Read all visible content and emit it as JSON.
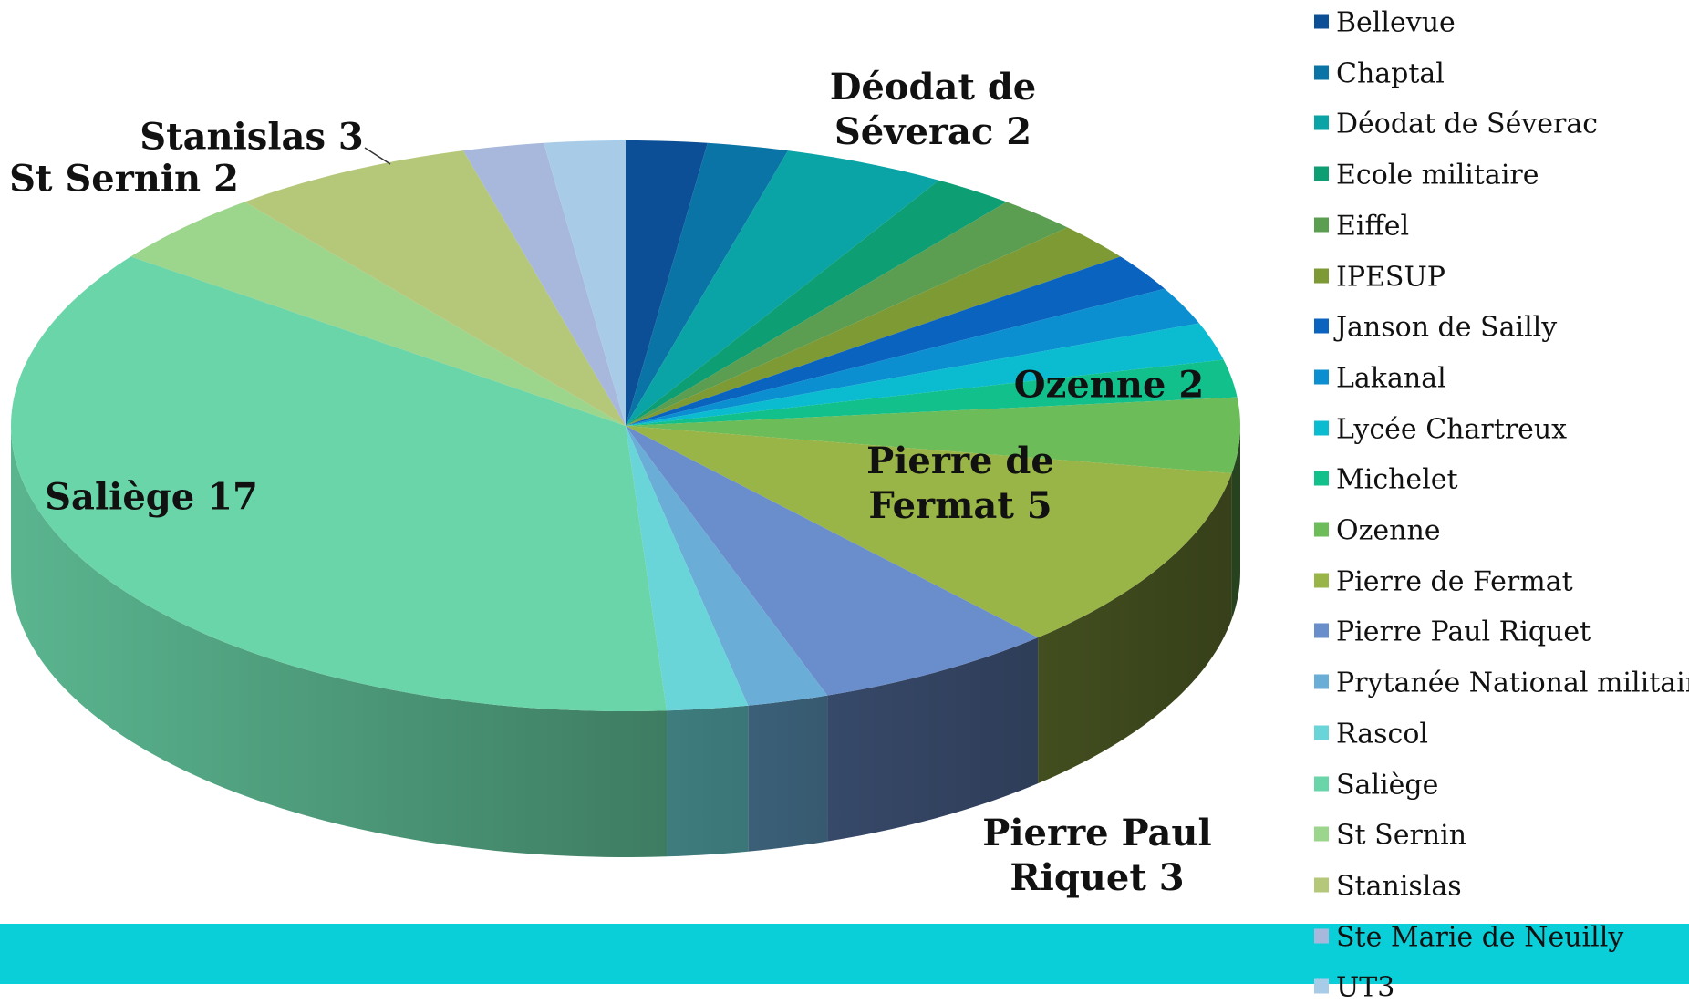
{
  "chart_data": {
    "type": "pie3d",
    "categories": [
      "Bellevue",
      "Chaptal",
      "Déodat de Séverac",
      "Ecole militaire",
      "Eiffel",
      "IPESUP",
      "Janson de Sailly",
      "Lakanal",
      "Lycée Chartreux",
      "Michelet",
      "Ozenne",
      "Pierre de Fermat",
      "Pierre Paul Riquet",
      "Prytanée National militaire",
      "Rascol",
      "Saliège",
      "St Sernin",
      "Stanislas",
      "Ste Marie de Neuilly",
      "UT3"
    ],
    "values": [
      1,
      1,
      2,
      1,
      1,
      1,
      1,
      1,
      1,
      1,
      2,
      5,
      3,
      1,
      1,
      17,
      2,
      3,
      1,
      1
    ],
    "colors": [
      "#0c4f96",
      "#0a74a6",
      "#0aa3a6",
      "#0d9e74",
      "#5b9e52",
      "#7d9a35",
      "#0b63c0",
      "#0b8fd0",
      "#0bbcd0",
      "#12c08c",
      "#6cbc5a",
      "#9ab547",
      "#6a8dcc",
      "#6aaed8",
      "#6ad5d8",
      "#6ad5a8",
      "#9cd58c",
      "#b5c87a",
      "#a8b8dc",
      "#a8cce8"
    ],
    "legend": "right"
  }
}
